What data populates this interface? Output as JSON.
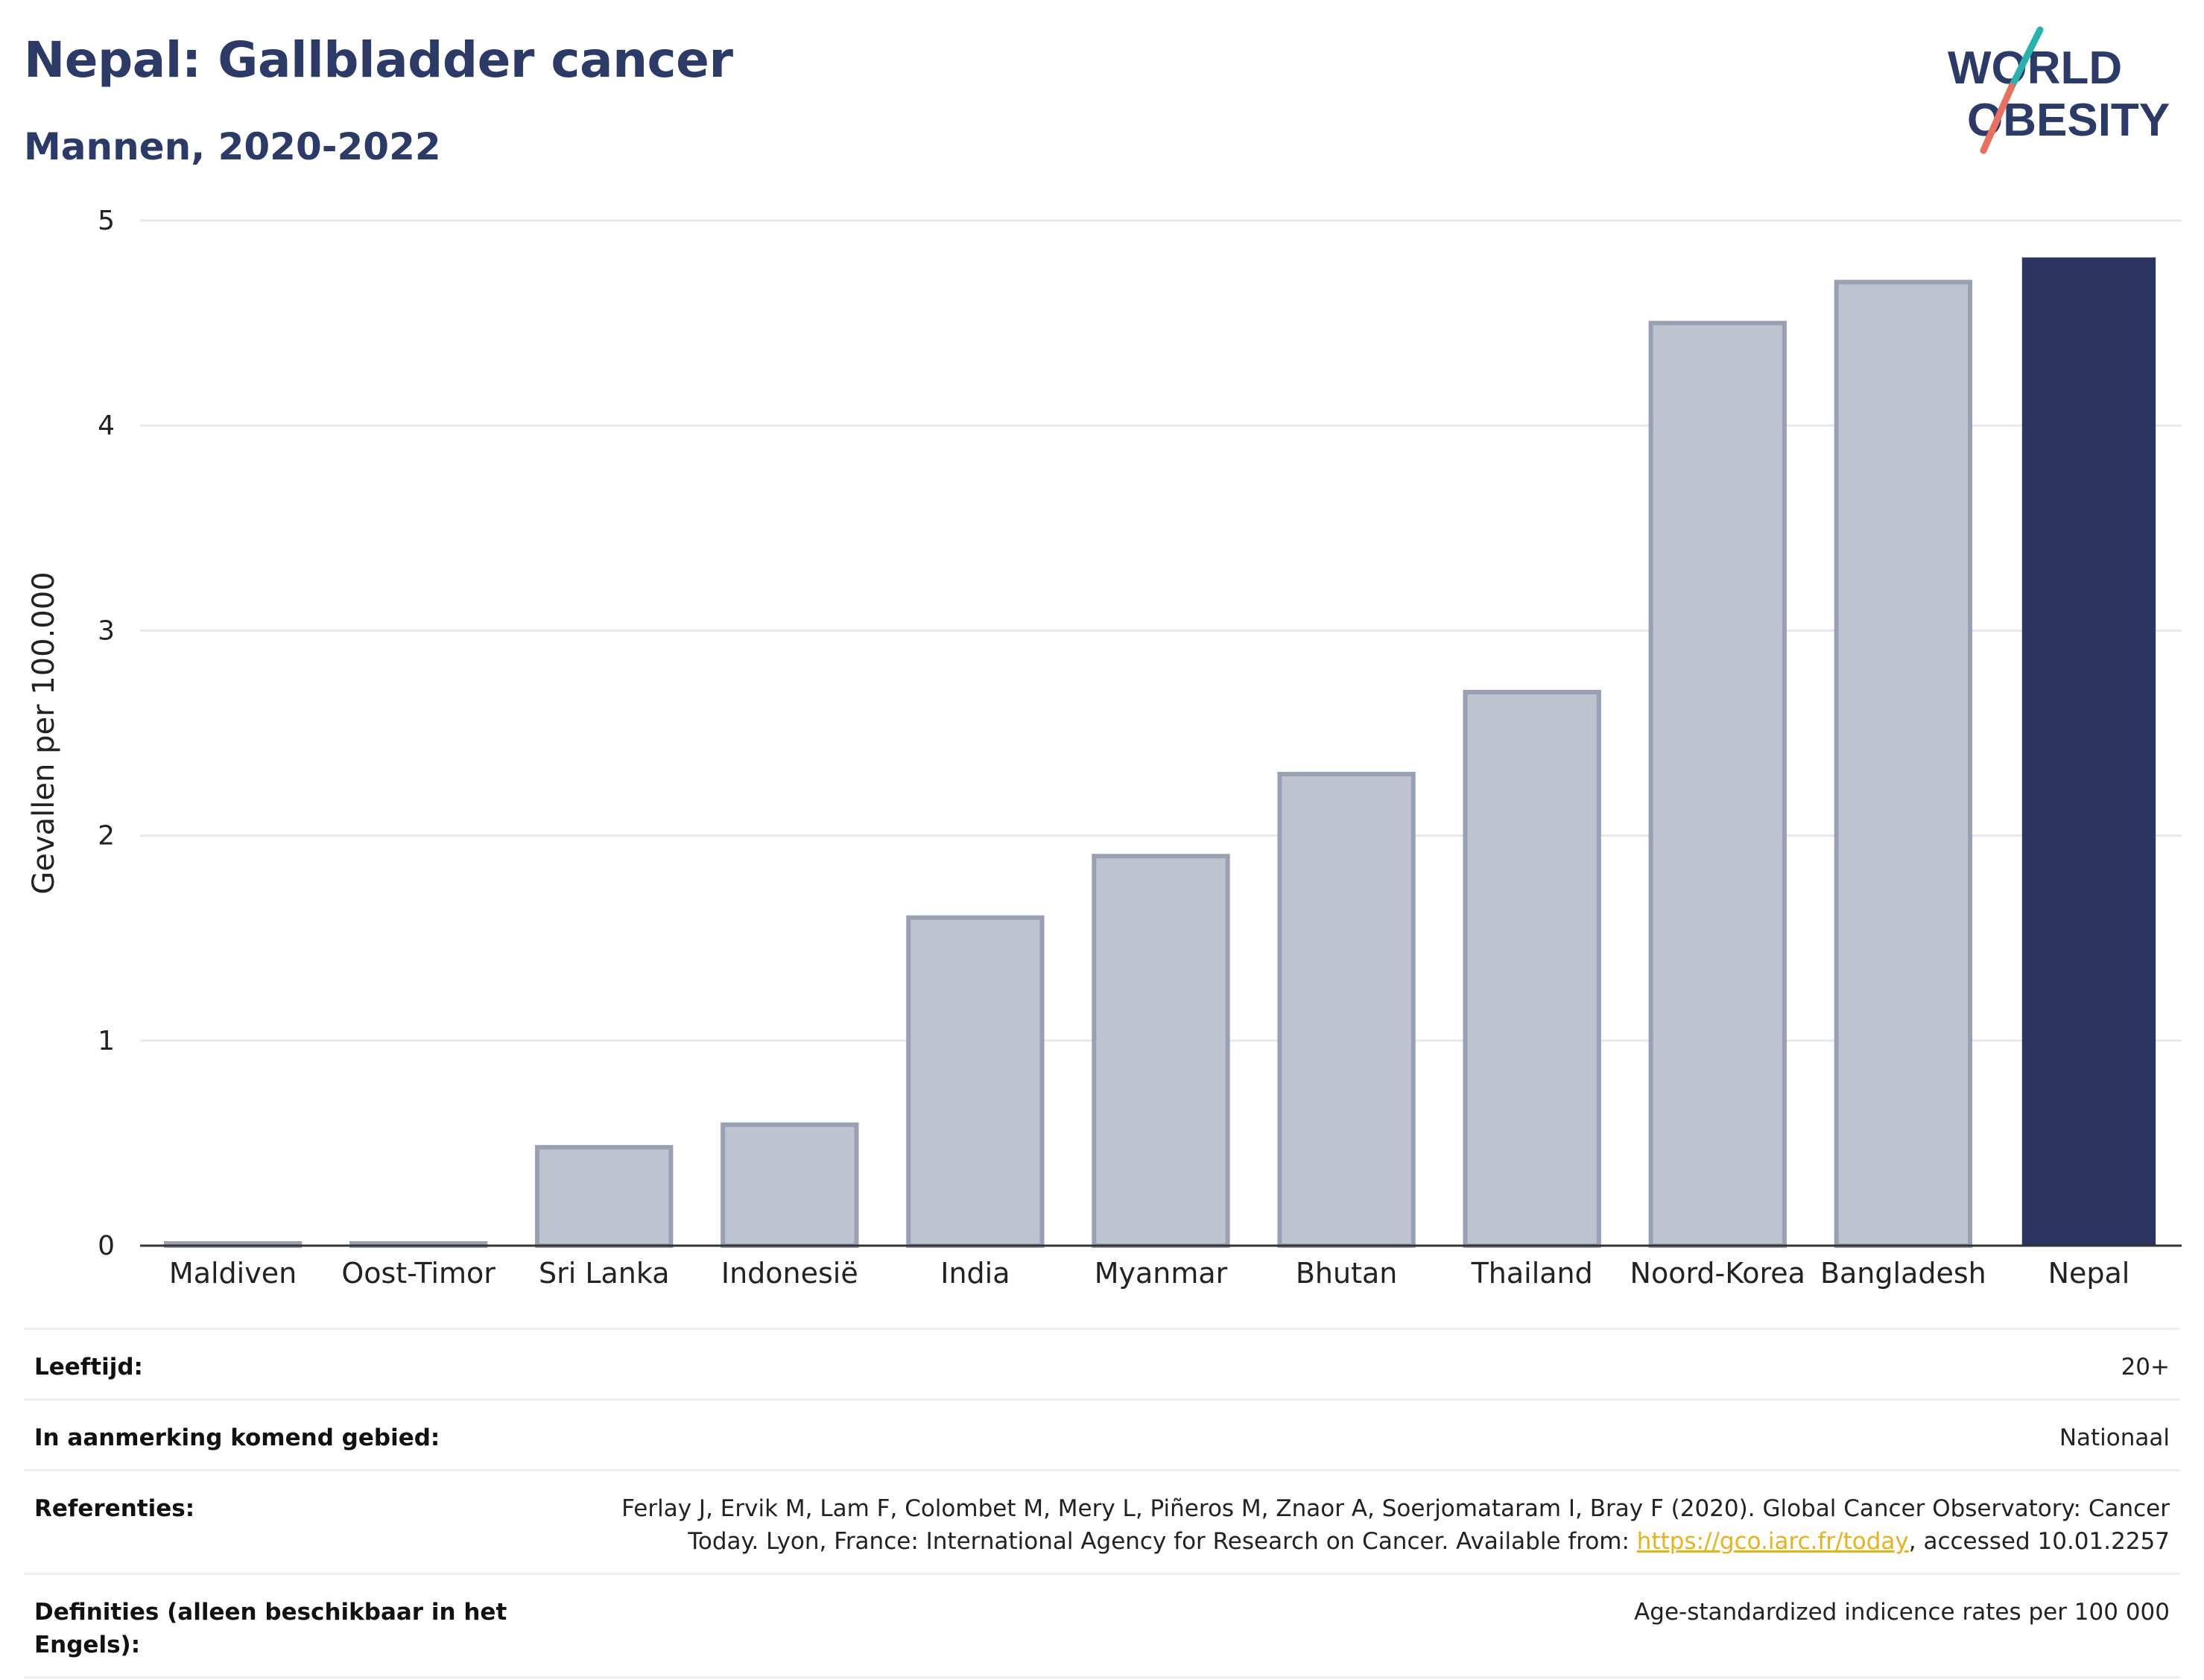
{
  "header": {
    "title": "Nepal: Gallbladder cancer",
    "subtitle": "Mannen, 2020-2022"
  },
  "logo": {
    "line1": "WORLD",
    "line2": "OBESITY"
  },
  "chart_data": {
    "type": "bar",
    "categories": [
      "Maldiven",
      "Oost-Timor",
      "Sri Lanka",
      "Indonesië",
      "India",
      "Myanmar",
      "Bhutan",
      "Thailand",
      "Noord-Korea",
      "Bangladesh",
      "Nepal"
    ],
    "values": [
      0.01,
      0.01,
      0.48,
      0.59,
      1.6,
      1.9,
      2.3,
      2.7,
      4.5,
      4.7,
      4.82
    ],
    "highlight": "Nepal",
    "ylabel": "Gevallen per 100.000",
    "xlabel": "",
    "ylim": [
      0,
      5
    ],
    "yticks": [
      0,
      1,
      2,
      3,
      4,
      5
    ],
    "grid": true,
    "colors": {
      "bar": "#bfc3cf",
      "bar_edge": "#9aa0b4",
      "highlight": "#2b3560",
      "grid": "#e6e8ee"
    }
  },
  "info": {
    "age_label": "Leeftijd:",
    "age_value": "20+",
    "area_label": "In aanmerking komend gebied:",
    "area_value": "Nationaal",
    "ref_label": "Referenties:",
    "ref_text_1": "Ferlay J, Ervik M, Lam F, Colombet M, Mery L, Piñeros M, Znaor A, Soerjomataram I, Bray F (2020). Global Cancer Observatory: Cancer Today. Lyon, France: International Agency for Research on Cancer. Available from: ",
    "ref_link": "https://gco.iarc.fr/today",
    "ref_text_2": ", accessed 10.01.2257",
    "def_label": "Definities (alleen beschikbaar in het Engels):",
    "def_value": "Age-standardized indicence rates per 100 000"
  }
}
